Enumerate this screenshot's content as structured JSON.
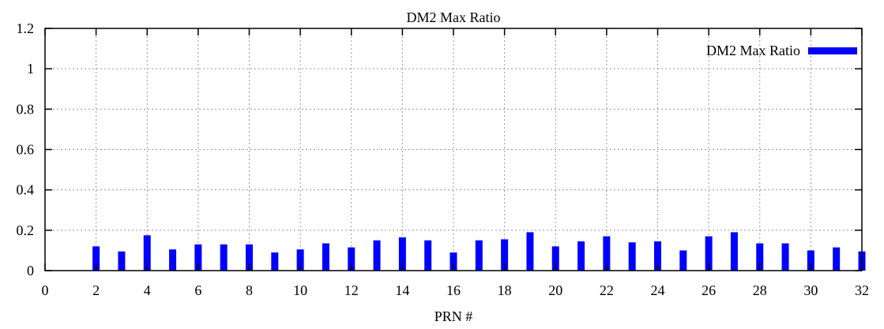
{
  "chart_data": {
    "type": "bar",
    "title": "DM2 Max Ratio",
    "xlabel": "PRN #",
    "ylabel": "",
    "xlim": [
      0,
      32
    ],
    "ylim": [
      0,
      1.2
    ],
    "x_ticks": [
      0,
      2,
      4,
      6,
      8,
      10,
      12,
      14,
      16,
      18,
      20,
      22,
      24,
      26,
      28,
      30,
      32
    ],
    "y_ticks": [
      0,
      0.2,
      0.4,
      0.6,
      0.8,
      1,
      1.2
    ],
    "grid": true,
    "legend_position": "top-right",
    "series": [
      {
        "name": "DM2 Max Ratio",
        "color": "#0000ff",
        "x": [
          2,
          3,
          4,
          5,
          6,
          7,
          8,
          9,
          10,
          11,
          12,
          13,
          14,
          15,
          16,
          17,
          18,
          19,
          20,
          21,
          22,
          23,
          24,
          25,
          26,
          27,
          28,
          29,
          30,
          31,
          32
        ],
        "values": [
          0.12,
          0.095,
          0.175,
          0.105,
          0.13,
          0.13,
          0.13,
          0.09,
          0.105,
          0.135,
          0.115,
          0.15,
          0.165,
          0.15,
          0.09,
          0.15,
          0.155,
          0.19,
          0.12,
          0.145,
          0.17,
          0.14,
          0.145,
          0.1,
          0.17,
          0.19,
          0.135,
          0.135,
          0.1,
          0.115,
          0.095
        ]
      }
    ]
  }
}
